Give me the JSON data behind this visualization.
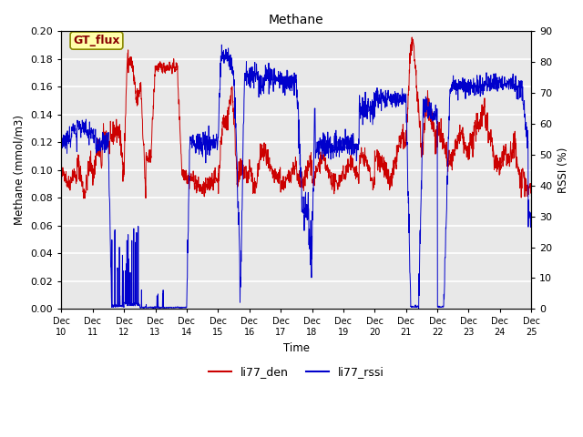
{
  "title": "Methane",
  "xlabel": "Time",
  "ylabel_left": "Methane (mmol/m3)",
  "ylabel_right": "RSSI (%)",
  "ylim_left": [
    0.0,
    0.2
  ],
  "ylim_right": [
    0,
    90
  ],
  "yticks_left": [
    0.0,
    0.02,
    0.04,
    0.06,
    0.08,
    0.1,
    0.12,
    0.14,
    0.16,
    0.18,
    0.2
  ],
  "yticks_right": [
    0,
    10,
    20,
    30,
    40,
    50,
    60,
    70,
    80,
    90
  ],
  "bg_color": "#e8e8e8",
  "grid_color": "#ffffff",
  "line_color_red": "#cc0000",
  "line_color_blue": "#0000cc",
  "legend_label_red": "li77_den",
  "legend_label_blue": "li77_rssi",
  "annotation_text": "GT_flux",
  "annotation_text_color": "#880000",
  "annotation_bbox_facecolor": "#ffffaa",
  "annotation_bbox_edgecolor": "#888800",
  "xtick_labels": [
    "Dec 10",
    "Dec 11",
    "Dec 12",
    "Dec 13",
    "Dec 14",
    "Dec 15",
    "Dec 16",
    "Dec 17",
    "Dec 18",
    "Dec 19",
    "Dec 20",
    "Dec 21",
    "Dec 22",
    "Dec 23",
    "Dec 24",
    "Dec 25"
  ],
  "xtick_positions": [
    0,
    1,
    2,
    3,
    4,
    5,
    6,
    7,
    8,
    9,
    10,
    11,
    12,
    13,
    14,
    15
  ],
  "figsize": [
    6.4,
    4.8
  ],
  "dpi": 100
}
